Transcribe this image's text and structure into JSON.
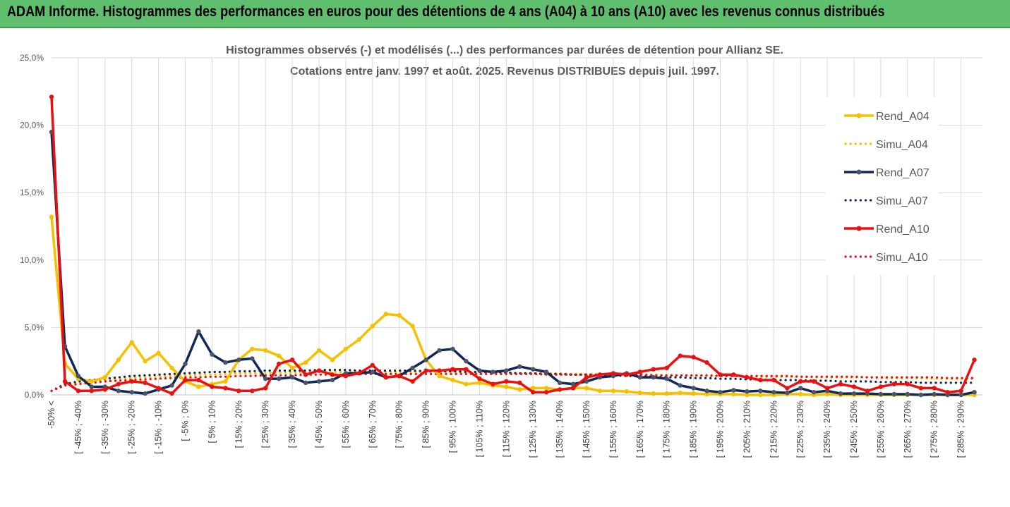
{
  "banner": {
    "title": "ADAM Informe. Histogrammes des performances en euros pour des détentions de 4 ans (A04) à 10 ans (A10) avec les revenus connus distribués"
  },
  "colors": {
    "banner_bg": "#5fbf6e",
    "A04": "#f5c000",
    "A07": "#0f2858",
    "A10": "#e81010",
    "grid": "#d9d9d9",
    "text": "#595959"
  },
  "chart_data": {
    "type": "line",
    "title": [
      "Histogrammes observés (-) et modélisés (...) des performances par durées de détention pour Allianz SE.",
      "Cotations entre janv. 1997 et août. 2025. Revenus DISTRIBUES depuis juil. 1997."
    ],
    "ylim": [
      0,
      25
    ],
    "y_ticks": [
      "0,0%",
      "5,0%",
      "10,0%",
      "15,0%",
      "20,0%",
      "25,0%"
    ],
    "y_unit": "%",
    "grid": true,
    "legend_position": "right",
    "x_tick_labels": [
      "-50% <",
      "[ -45% ; -40%",
      "[ -35% ; -30%",
      "[ -25% ; -20%",
      "[ -15% ; -10%",
      "[ -5% ; 0%",
      "[ 5% ; 10%",
      "[ 15% ; 20%",
      "[ 25% ; 30%",
      "[ 35% ; 40%",
      "[ 45% ; 50%",
      "[ 55% ; 60%",
      "[ 65% ; 70%",
      "[ 75% ; 80%",
      "[ 85% ; 90%",
      "[ 95% ; 100%",
      "[ 105% ; 110%",
      "[ 115% ; 120%",
      "[ 125% ; 130%",
      "[ 135% ; 140%",
      "[ 145% ; 150%",
      "[ 155% ; 160%",
      "[ 165% ; 170%",
      "[ 175% ; 180%",
      "[ 185% ; 190%",
      "[ 195% ; 200%",
      "[ 205% ; 210%",
      "[ 215% ; 220%",
      "[ 225% ; 230%",
      "[ 235% ; 240%",
      "[ 245% ; 250%",
      "[ 255% ; 260%",
      "[ 265% ; 270%",
      "[ 275% ; 280%",
      "[ 285% ; 290%"
    ],
    "series": [
      {
        "name": "Rend_A04",
        "style": "solid",
        "color": "#f5c000",
        "values": [
          13.2,
          2.3,
          1.2,
          1.0,
          1.3,
          2.6,
          3.9,
          2.5,
          3.1,
          2.0,
          1.0,
          0.6,
          0.8,
          1.0,
          2.6,
          3.4,
          3.3,
          2.9,
          2.0,
          2.4,
          3.3,
          2.6,
          3.4,
          4.1,
          5.1,
          6.0,
          5.9,
          5.1,
          2.6,
          1.4,
          1.1,
          0.8,
          0.9,
          0.7,
          0.6,
          0.4,
          0.5,
          0.5,
          0.4,
          0.5,
          0.5,
          0.3,
          0.3,
          0.25,
          0.15,
          0.1,
          0.1,
          0.15,
          0.1,
          0.05,
          0.05,
          0.05,
          0.0,
          0.0,
          0.0,
          0.05,
          0.05,
          0.0,
          0.05,
          0.0,
          0.0,
          0.0,
          0.0,
          0.0,
          0.0,
          0.0,
          0.0,
          0.0,
          0.0,
          0.0
        ]
      },
      {
        "name": "Simu_A04",
        "style": "dotted",
        "color": "#f5c000",
        "values": [
          0.3,
          0.7,
          0.9,
          1.0,
          1.1,
          1.2,
          1.25,
          1.3,
          1.35,
          1.4,
          1.45,
          1.5,
          1.5,
          1.55,
          1.6,
          1.6,
          1.6,
          1.65,
          1.65,
          1.65,
          1.7,
          1.7,
          1.7,
          1.7,
          1.7,
          1.7,
          1.7,
          1.7,
          1.7,
          1.7,
          1.7,
          1.7,
          1.65,
          1.65,
          1.65,
          1.6,
          1.6,
          1.6,
          1.6,
          1.55,
          1.55,
          1.55,
          1.5,
          1.5,
          1.5,
          1.5,
          1.45,
          1.45,
          1.45,
          1.4,
          1.4,
          1.4,
          1.4,
          1.35,
          1.35,
          1.35,
          1.35,
          1.3,
          1.3,
          1.3,
          1.3,
          1.3,
          1.25,
          1.25,
          1.25,
          1.25,
          1.2,
          1.2,
          1.2,
          1.2
        ]
      },
      {
        "name": "Rend_A07",
        "style": "solid",
        "color": "#0f2858",
        "values": [
          19.5,
          3.6,
          1.4,
          0.6,
          0.6,
          0.3,
          0.2,
          0.1,
          0.4,
          0.7,
          2.3,
          4.7,
          3.0,
          2.4,
          2.6,
          2.7,
          1.2,
          1.2,
          1.3,
          0.9,
          1.0,
          1.1,
          1.6,
          1.6,
          1.7,
          1.3,
          1.4,
          2.0,
          2.6,
          3.3,
          3.4,
          2.5,
          1.8,
          1.7,
          1.8,
          2.1,
          1.9,
          1.7,
          0.9,
          0.8,
          1.0,
          1.3,
          1.4,
          1.6,
          1.3,
          1.3,
          1.2,
          0.7,
          0.5,
          0.3,
          0.2,
          0.35,
          0.25,
          0.3,
          0.2,
          0.15,
          0.5,
          0.2,
          0.3,
          0.1,
          0.1,
          0.1,
          0.05,
          0.05,
          0.05,
          0.0,
          0.05,
          0.0,
          0.0,
          0.2
        ]
      },
      {
        "name": "Simu_A07",
        "style": "dotted",
        "color": "#0f2858",
        "values": [
          0.3,
          0.8,
          1.0,
          1.1,
          1.2,
          1.3,
          1.4,
          1.45,
          1.5,
          1.55,
          1.6,
          1.65,
          1.7,
          1.7,
          1.75,
          1.75,
          1.8,
          1.8,
          1.8,
          1.8,
          1.85,
          1.85,
          1.85,
          1.8,
          1.8,
          1.8,
          1.8,
          1.8,
          1.75,
          1.75,
          1.75,
          1.7,
          1.7,
          1.7,
          1.65,
          1.6,
          1.6,
          1.55,
          1.55,
          1.5,
          1.5,
          1.45,
          1.45,
          1.4,
          1.4,
          1.35,
          1.3,
          1.3,
          1.25,
          1.25,
          1.2,
          1.2,
          1.15,
          1.15,
          1.1,
          1.1,
          1.1,
          1.05,
          1.05,
          1.0,
          1.0,
          1.0,
          0.95,
          0.95,
          0.95,
          0.9,
          0.9,
          0.9,
          0.9,
          0.9
        ]
      },
      {
        "name": "Rend_A10",
        "style": "solid",
        "color": "#e81010",
        "values": [
          22.1,
          1.0,
          0.3,
          0.3,
          0.4,
          0.8,
          1.0,
          0.9,
          0.5,
          0.1,
          1.1,
          1.1,
          0.6,
          0.5,
          0.3,
          0.3,
          0.5,
          2.3,
          2.6,
          1.5,
          1.8,
          1.5,
          1.4,
          1.6,
          2.2,
          1.3,
          1.4,
          1.0,
          1.8,
          1.8,
          1.9,
          1.9,
          1.2,
          0.8,
          1.0,
          0.9,
          0.2,
          0.2,
          0.4,
          0.5,
          1.3,
          1.5,
          1.6,
          1.5,
          1.7,
          1.9,
          2.0,
          2.9,
          2.8,
          2.4,
          1.5,
          1.5,
          1.3,
          1.1,
          1.1,
          0.5,
          1.0,
          1.0,
          0.5,
          0.8,
          0.6,
          0.3,
          0.6,
          0.8,
          0.8,
          0.5,
          0.5,
          0.2,
          0.3,
          2.6
        ]
      },
      {
        "name": "Simu_A10",
        "style": "dotted",
        "color": "#e81010",
        "values": [
          0.3,
          0.7,
          0.8,
          0.9,
          1.0,
          1.05,
          1.1,
          1.15,
          1.2,
          1.25,
          1.3,
          1.3,
          1.35,
          1.35,
          1.4,
          1.4,
          1.45,
          1.45,
          1.45,
          1.5,
          1.5,
          1.5,
          1.5,
          1.55,
          1.55,
          1.55,
          1.55,
          1.55,
          1.55,
          1.55,
          1.55,
          1.55,
          1.55,
          1.55,
          1.55,
          1.55,
          1.55,
          1.5,
          1.5,
          1.5,
          1.5,
          1.5,
          1.5,
          1.5,
          1.5,
          1.45,
          1.45,
          1.45,
          1.45,
          1.45,
          1.4,
          1.4,
          1.4,
          1.4,
          1.4,
          1.4,
          1.35,
          1.35,
          1.35,
          1.35,
          1.35,
          1.3,
          1.3,
          1.3,
          1.3,
          1.3,
          1.3,
          1.25,
          1.25,
          1.25
        ]
      }
    ]
  }
}
